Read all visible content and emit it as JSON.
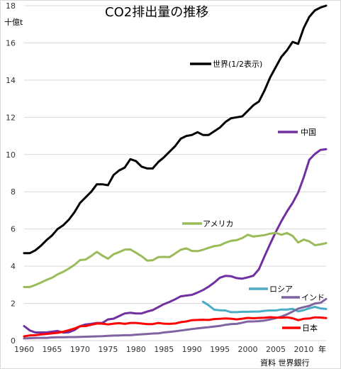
{
  "chart_data": {
    "type": "line",
    "title": "CO2排出量の推移",
    "ylabel": "十億t",
    "xlabel": "年",
    "source": "資料 世界銀行",
    "xlim": [
      1960,
      2014
    ],
    "ylim": [
      0,
      18
    ],
    "xticks": [
      1960,
      1965,
      1970,
      1975,
      1980,
      1985,
      1990,
      1995,
      2000,
      2005,
      2010
    ],
    "yticks": [
      0,
      2,
      4,
      6,
      8,
      10,
      12,
      14,
      16,
      18
    ],
    "grid": true,
    "series": [
      {
        "name": "世界(1/2表示)",
        "color": "#000000",
        "x": [
          1960,
          1961,
          1962,
          1963,
          1964,
          1965,
          1966,
          1967,
          1968,
          1969,
          1970,
          1971,
          1972,
          1973,
          1974,
          1975,
          1976,
          1977,
          1978,
          1979,
          1980,
          1981,
          1982,
          1983,
          1984,
          1985,
          1986,
          1987,
          1988,
          1989,
          1990,
          1991,
          1992,
          1993,
          1994,
          1995,
          1996,
          1997,
          1998,
          1999,
          2000,
          2001,
          2002,
          2003,
          2004,
          2005,
          2006,
          2007,
          2008,
          2009,
          2010,
          2011,
          2012,
          2013,
          2014
        ],
        "y": [
          4.7,
          4.7,
          4.85,
          5.1,
          5.4,
          5.65,
          6.0,
          6.2,
          6.5,
          6.9,
          7.4,
          7.7,
          8.0,
          8.4,
          8.4,
          8.35,
          8.9,
          9.15,
          9.3,
          9.75,
          9.65,
          9.35,
          9.25,
          9.25,
          9.6,
          9.85,
          10.15,
          10.45,
          10.85,
          11.0,
          11.05,
          11.2,
          11.05,
          11.05,
          11.25,
          11.45,
          11.75,
          11.95,
          12.0,
          12.05,
          12.35,
          12.65,
          12.85,
          13.45,
          14.15,
          14.7,
          15.25,
          15.6,
          16.05,
          15.95,
          16.8,
          17.4,
          17.75,
          17.9,
          18.0
        ]
      },
      {
        "name": "中国",
        "color": "#7030a0",
        "x": [
          1960,
          1961,
          1962,
          1963,
          1964,
          1965,
          1966,
          1967,
          1968,
          1969,
          1970,
          1971,
          1972,
          1973,
          1974,
          1975,
          1976,
          1977,
          1978,
          1979,
          1980,
          1981,
          1982,
          1983,
          1984,
          1985,
          1986,
          1987,
          1988,
          1989,
          1990,
          1991,
          1992,
          1993,
          1994,
          1995,
          1996,
          1997,
          1998,
          1999,
          2000,
          2001,
          2002,
          2003,
          2004,
          2005,
          2006,
          2007,
          2008,
          2009,
          2010,
          2011,
          2012,
          2013,
          2014
        ],
        "y": [
          0.78,
          0.55,
          0.44,
          0.44,
          0.44,
          0.48,
          0.52,
          0.43,
          0.45,
          0.57,
          0.77,
          0.87,
          0.9,
          0.95,
          0.95,
          1.14,
          1.18,
          1.32,
          1.46,
          1.5,
          1.46,
          1.46,
          1.56,
          1.64,
          1.8,
          1.96,
          2.08,
          2.22,
          2.38,
          2.42,
          2.46,
          2.58,
          2.72,
          2.9,
          3.12,
          3.38,
          3.48,
          3.46,
          3.36,
          3.33,
          3.4,
          3.49,
          3.84,
          4.54,
          5.2,
          5.84,
          6.42,
          6.94,
          7.4,
          7.96,
          8.77,
          9.72,
          10.03,
          10.25,
          10.29
        ]
      },
      {
        "name": "アメリカ",
        "color": "#9bbb59",
        "x": [
          1960,
          1961,
          1962,
          1963,
          1964,
          1965,
          1966,
          1967,
          1968,
          1969,
          1970,
          1971,
          1972,
          1973,
          1974,
          1975,
          1976,
          1977,
          1978,
          1979,
          1980,
          1981,
          1982,
          1983,
          1984,
          1985,
          1986,
          1987,
          1988,
          1989,
          1990,
          1991,
          1992,
          1993,
          1994,
          1995,
          1996,
          1997,
          1998,
          1999,
          2000,
          2001,
          2002,
          2003,
          2004,
          2005,
          2006,
          2007,
          2008,
          2009,
          2010,
          2011,
          2012,
          2013,
          2014
        ],
        "y": [
          2.88,
          2.88,
          2.99,
          3.12,
          3.26,
          3.38,
          3.56,
          3.7,
          3.87,
          4.07,
          4.33,
          4.36,
          4.55,
          4.77,
          4.57,
          4.4,
          4.64,
          4.76,
          4.89,
          4.9,
          4.72,
          4.54,
          4.3,
          4.32,
          4.49,
          4.5,
          4.49,
          4.68,
          4.88,
          4.96,
          4.82,
          4.81,
          4.88,
          4.99,
          5.08,
          5.12,
          5.26,
          5.36,
          5.4,
          5.51,
          5.69,
          5.59,
          5.63,
          5.67,
          5.75,
          5.79,
          5.69,
          5.78,
          5.63,
          5.27,
          5.43,
          5.33,
          5.13,
          5.17,
          5.24
        ]
      },
      {
        "name": "ロシア",
        "color": "#4bacc6",
        "x": [
          1992,
          1993,
          1994,
          1995,
          1996,
          1997,
          1998,
          1999,
          2000,
          2001,
          2002,
          2003,
          2004,
          2005,
          2006,
          2007,
          2008,
          2009,
          2010,
          2011,
          2012,
          2013,
          2014
        ],
        "y": [
          2.09,
          1.9,
          1.66,
          1.63,
          1.62,
          1.53,
          1.53,
          1.55,
          1.55,
          1.56,
          1.56,
          1.6,
          1.62,
          1.62,
          1.67,
          1.67,
          1.71,
          1.57,
          1.64,
          1.74,
          1.81,
          1.73,
          1.7
        ]
      },
      {
        "name": "インド",
        "color": "#8064a2",
        "x": [
          1960,
          1961,
          1962,
          1963,
          1964,
          1965,
          1966,
          1967,
          1968,
          1969,
          1970,
          1971,
          1972,
          1973,
          1974,
          1975,
          1976,
          1977,
          1978,
          1979,
          1980,
          1981,
          1982,
          1983,
          1984,
          1985,
          1986,
          1987,
          1988,
          1989,
          1990,
          1991,
          1992,
          1993,
          1994,
          1995,
          1996,
          1997,
          1998,
          1999,
          2000,
          2001,
          2002,
          2003,
          2004,
          2005,
          2006,
          2007,
          2008,
          2009,
          2010,
          2011,
          2012,
          2013,
          2014
        ],
        "y": [
          0.12,
          0.13,
          0.14,
          0.15,
          0.15,
          0.17,
          0.18,
          0.18,
          0.19,
          0.19,
          0.2,
          0.21,
          0.22,
          0.23,
          0.24,
          0.26,
          0.27,
          0.28,
          0.29,
          0.29,
          0.32,
          0.34,
          0.36,
          0.38,
          0.39,
          0.44,
          0.47,
          0.5,
          0.54,
          0.58,
          0.62,
          0.66,
          0.69,
          0.72,
          0.76,
          0.79,
          0.85,
          0.89,
          0.9,
          0.96,
          1.03,
          1.03,
          1.05,
          1.08,
          1.14,
          1.21,
          1.29,
          1.41,
          1.56,
          1.72,
          1.8,
          1.87,
          2.0,
          2.03,
          2.24
        ]
      },
      {
        "name": "日本",
        "color": "#ff0000",
        "x": [
          1960,
          1961,
          1962,
          1963,
          1964,
          1965,
          1966,
          1967,
          1968,
          1969,
          1970,
          1971,
          1972,
          1973,
          1974,
          1975,
          1976,
          1977,
          1978,
          1979,
          1980,
          1981,
          1982,
          1983,
          1984,
          1985,
          1986,
          1987,
          1988,
          1989,
          1990,
          1991,
          1992,
          1993,
          1994,
          1995,
          1996,
          1997,
          1998,
          1999,
          2000,
          2001,
          2002,
          2003,
          2004,
          2005,
          2006,
          2007,
          2008,
          2009,
          2010,
          2011,
          2012,
          2013,
          2014
        ],
        "y": [
          0.23,
          0.28,
          0.29,
          0.33,
          0.36,
          0.39,
          0.42,
          0.48,
          0.56,
          0.65,
          0.77,
          0.78,
          0.85,
          0.92,
          0.91,
          0.87,
          0.91,
          0.94,
          0.9,
          0.95,
          0.95,
          0.92,
          0.89,
          0.89,
          0.95,
          0.91,
          0.9,
          0.92,
          0.99,
          1.03,
          1.1,
          1.11,
          1.12,
          1.11,
          1.16,
          1.17,
          1.19,
          1.18,
          1.14,
          1.18,
          1.22,
          1.2,
          1.22,
          1.23,
          1.26,
          1.24,
          1.23,
          1.25,
          1.2,
          1.1,
          1.17,
          1.19,
          1.25,
          1.24,
          1.21
        ]
      }
    ]
  }
}
